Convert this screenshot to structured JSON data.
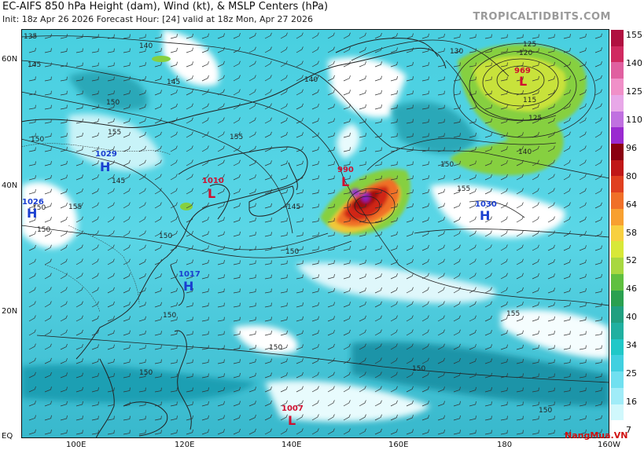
{
  "header": {
    "title": "EC-AIFS 850 hPa Height (dam), Wind (kt), & MSLP Centers (hPa)",
    "subtitle": "Init: 18z Apr 26 2026   Forecast Hour: [24]   valid at 18z Mon, Apr 27 2026"
  },
  "brand": "TROPICALTIDBITS.COM",
  "watermark": "NangMua.VN",
  "axes": {
    "lat_labels": [
      "60N",
      "40N",
      "20N",
      "EQ"
    ],
    "lon_labels": [
      "100E",
      "120E",
      "140E",
      "160E",
      "180",
      "160W"
    ]
  },
  "colorbar": {
    "labels": [
      "155",
      "140",
      "125",
      "110",
      "96",
      "80",
      "64",
      "58",
      "52",
      "46",
      "40",
      "34",
      "25",
      "16",
      "7"
    ],
    "colors": [
      "#b01040",
      "#d02a60",
      "#e060a0",
      "#f090c8",
      "#e8a8e8",
      "#c070e0",
      "#9a2ad0",
      "#8a0010",
      "#c01818",
      "#e04020",
      "#f07028",
      "#f8a030",
      "#f8d040",
      "#d8e838",
      "#a8d840",
      "#60c040",
      "#2aa050",
      "#20a080",
      "#20b0a0",
      "#20c8c8",
      "#40d0e0",
      "#70e0f0",
      "#a0ecf8",
      "#d0f8fc",
      "#ffffff"
    ]
  },
  "centers": [
    {
      "type": "H",
      "value": "1029",
      "color": "#1a3fd0"
    },
    {
      "type": "H",
      "value": "1026",
      "color": "#1a3fd0"
    },
    {
      "type": "L",
      "value": "1010",
      "color": "#d01030"
    },
    {
      "type": "L",
      "value": "990",
      "color": "#d01030"
    },
    {
      "type": "L",
      "value": "969",
      "color": "#d01030"
    },
    {
      "type": "H",
      "value": "1030",
      "color": "#1a3fd0"
    },
    {
      "type": "H",
      "value": "1017",
      "color": "#1a3fd0"
    },
    {
      "type": "L",
      "value": "1007",
      "color": "#d01030"
    }
  ],
  "contour_labels": [
    "135",
    "140",
    "145",
    "150",
    "145",
    "150",
    "155",
    "150",
    "145",
    "140",
    "145",
    "150",
    "155",
    "150",
    "155",
    "150",
    "150",
    "150",
    "150",
    "130",
    "125",
    "120",
    "115",
    "125",
    "140",
    "150",
    "155",
    "150"
  ]
}
